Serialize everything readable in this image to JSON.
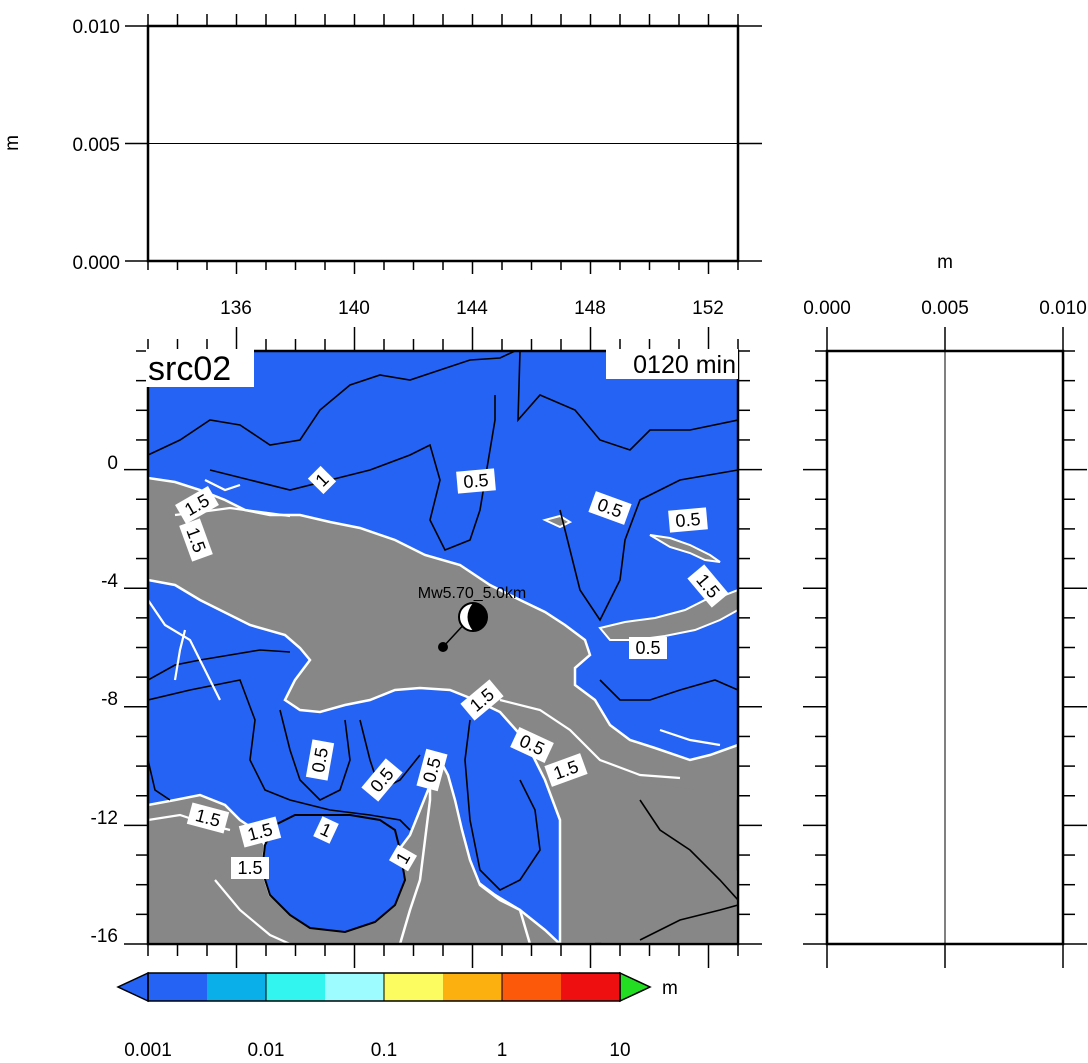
{
  "top_panel": {
    "y_label": "m",
    "y_ticks": [
      "0.010",
      "0.005",
      "0.000"
    ],
    "x_ticks": [
      "136",
      "140",
      "144",
      "148",
      "152"
    ]
  },
  "right_panel": {
    "x_label": "m",
    "x_ticks": [
      "0.000",
      "0.005",
      "0.010"
    ]
  },
  "map": {
    "title": "src02",
    "time": "0120 min",
    "y_ticks": [
      "0",
      "-4",
      "-8",
      "-12",
      "-16"
    ],
    "source_label": "Mw5.70_5.0km",
    "contour_labels": [
      "1.5",
      "0.5",
      "1",
      "0.5",
      "0.5",
      "1.5",
      "1.5",
      "0.5",
      "1.5",
      "0.5",
      "1.5",
      "0.5",
      "0.5",
      "0.5",
      "1.5",
      "1",
      "1.5",
      "1.5",
      "1"
    ],
    "colors": {
      "sea": "#2563f5",
      "land": "#878787",
      "contour_black": "#000000",
      "contour_white": "#ffffff"
    }
  },
  "colorbar": {
    "unit": "m",
    "tick_labels": [
      "0.001",
      "0.01",
      "0.1",
      "1",
      "10"
    ],
    "colors": [
      "#2563f5",
      "#0aaee8",
      "#33f5f0",
      "#9cfcff",
      "#fcfc60",
      "#fcb010",
      "#fc5a0a",
      "#ee1010",
      "#22dd22"
    ]
  }
}
